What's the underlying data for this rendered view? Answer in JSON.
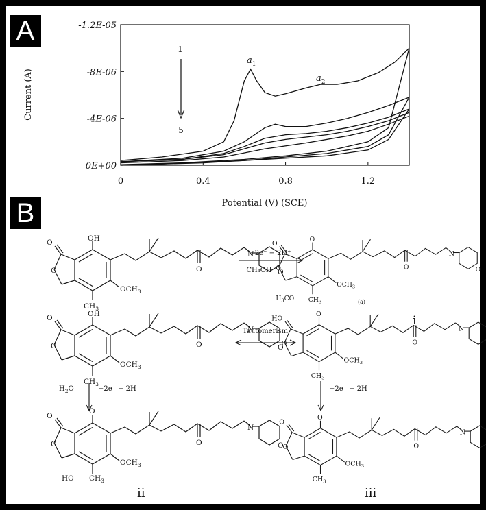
{
  "panels": {
    "a": "A",
    "b": "B"
  },
  "chart_data": {
    "type": "line",
    "title": "",
    "xlabel": "Potential (V) (SCE)",
    "ylabel": "Current (A)",
    "xlim": [
      0,
      1.4
    ],
    "ylim": [
      0,
      -1.2e-05
    ],
    "x_ticks": [
      "0",
      "0.4",
      "0.8",
      "1.2"
    ],
    "x_tick_values": [
      0,
      0.4,
      0.8,
      1.2
    ],
    "y_ticks": [
      "0E+00",
      "-4E-06",
      "-8E-06",
      "-1.2E-05"
    ],
    "y_tick_values": [
      0,
      -4e-06,
      -8e-06,
      -1.2e-05
    ],
    "grid": false,
    "annotations": {
      "start": "1",
      "end": "5",
      "peak1": "a",
      "peak1_sub": "1",
      "peak2": "a",
      "peak2_sub": "2"
    },
    "series": [
      {
        "x": [
          0,
          0.2,
          0.4,
          0.5,
          0.55,
          0.6,
          0.63,
          0.66,
          0.7,
          0.75,
          0.8,
          0.9,
          0.97,
          1.05,
          1.15,
          1.25,
          1.33,
          1.4
        ],
        "y": [
          -4e-07,
          -7e-07,
          -1.2e-06,
          -2e-06,
          -3.8e-06,
          -7.2e-06,
          -8.2e-06,
          -7.2e-06,
          -6.2e-06,
          -5.9e-06,
          -6.1e-06,
          -6.6e-06,
          -6.9e-06,
          -6.9e-06,
          -7.2e-06,
          -7.9e-06,
          -8.8e-06,
          -1e-05
        ]
      },
      {
        "x": [
          0,
          0.3,
          0.5,
          0.6,
          0.7,
          0.75,
          0.8,
          0.9,
          1.0,
          1.1,
          1.2,
          1.3,
          1.4
        ],
        "y": [
          -3e-07,
          -6e-07,
          -1.2e-06,
          -2e-06,
          -3.2e-06,
          -3.5e-06,
          -3.3e-06,
          -3.3e-06,
          -3.6e-06,
          -4e-06,
          -4.5e-06,
          -5.1e-06,
          -5.8e-06
        ]
      },
      {
        "x": [
          0,
          0.3,
          0.5,
          0.6,
          0.7,
          0.8,
          0.9,
          1.0,
          1.1,
          1.2,
          1.3,
          1.4
        ],
        "y": [
          -3e-07,
          -5e-07,
          -1e-06,
          -1.6e-06,
          -2.3e-06,
          -2.6e-06,
          -2.7e-06,
          -2.9e-06,
          -3.2e-06,
          -3.6e-06,
          -4.1e-06,
          -4.8e-06
        ]
      },
      {
        "x": [
          0,
          0.3,
          0.5,
          0.6,
          0.7,
          0.8,
          0.9,
          1.0,
          1.1,
          1.2,
          1.3,
          1.4
        ],
        "y": [
          -3e-07,
          -5e-07,
          -9e-07,
          -1.4e-06,
          -1.9e-06,
          -2.2e-06,
          -2.4e-06,
          -2.6e-06,
          -2.9e-06,
          -3.3e-06,
          -3.8e-06,
          -4.5e-06
        ]
      },
      {
        "x": [
          0,
          0.3,
          0.5,
          0.7,
          0.9,
          1.1,
          1.2,
          1.3,
          1.4
        ],
        "y": [
          -2e-07,
          -4e-07,
          -7e-07,
          -1.4e-06,
          -1.9e-06,
          -2.5e-06,
          -2.9e-06,
          -3.5e-06,
          -4.2e-06
        ]
      },
      {
        "x": [
          1.4,
          1.3,
          1.2,
          1.0,
          0.8,
          0.6,
          0.4,
          0.2,
          0
        ],
        "y": [
          -1e-05,
          -3.2e-06,
          -2e-06,
          -1.2e-06,
          -8e-07,
          -5e-07,
          -3e-07,
          -1e-07,
          0
        ]
      },
      {
        "x": [
          1.4,
          1.3,
          1.2,
          1.0,
          0.8,
          0.6,
          0.3,
          0
        ],
        "y": [
          -5.8e-06,
          -2.6e-06,
          -1.6e-06,
          -1e-06,
          -7e-07,
          -4e-07,
          -2e-07,
          -5e-08
        ]
      },
      {
        "x": [
          1.4,
          1.3,
          1.2,
          1.0,
          0.7,
          0.4,
          0
        ],
        "y": [
          -4.8e-06,
          -2.2e-06,
          -1.3e-06,
          -8e-07,
          -5e-07,
          -2e-07,
          0
        ]
      }
    ]
  },
  "scheme": {
    "OH": "OH",
    "O": "O",
    "N": "N",
    "OCH3": "OCH",
    "CH3": "CH",
    "three": "3",
    "H3CO": "H",
    "H3CO_rest": "CO",
    "HO": "HO",
    "H2O": "H",
    "H2O_rest": "O",
    "two": "2",
    "arrow1_top": "−2e⁻ − 2H⁺",
    "arrow1_bottom": "CH₃OH",
    "tautomerism": "Tautomerism",
    "arrow_down": "−2e⁻ − 2H⁺",
    "label_a": "(a)",
    "label_i": "i",
    "label_ii": "ii",
    "label_iii": "iii"
  }
}
